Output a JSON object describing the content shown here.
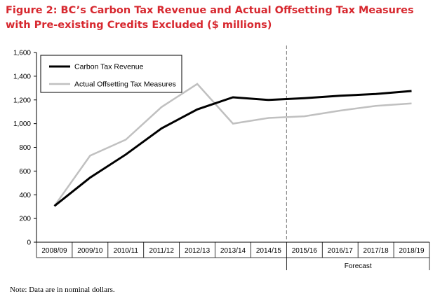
{
  "title": {
    "line1": "Figure 2: BC’s Carbon Tax Revenue and Actual Offsetting Tax Measures",
    "line2": "with Pre-existing Credits Excluded ($ millions)"
  },
  "chart_data": {
    "type": "line",
    "categories": [
      "2008/09",
      "2009/10",
      "2010/11",
      "2011/12",
      "2012/13",
      "2013/14",
      "2014/15",
      "2015/16",
      "2016/17",
      "2017/18",
      "2018/19"
    ],
    "series": [
      {
        "name": "Carbon Tax Revenue",
        "color": "#000000",
        "values": [
          305,
          545,
          740,
          960,
          1120,
          1222,
          1200,
          1215,
          1235,
          1250,
          1275
        ]
      },
      {
        "name": "Actual Offsetting Tax Measures",
        "color": "#c0c0c0",
        "values": [
          305,
          730,
          865,
          1140,
          1335,
          1000,
          1048,
          1062,
          1110,
          1150,
          1170
        ]
      }
    ],
    "ylim": [
      0,
      1600
    ],
    "yticks": [
      0,
      200,
      400,
      600,
      800,
      1000,
      1200,
      1400,
      1600
    ],
    "ytick_labels": [
      "0",
      "200",
      "400",
      "600",
      "800",
      "1,000",
      "1,200",
      "1,400",
      "1,600"
    ],
    "forecast_label": "Forecast",
    "forecast_start_index": 7,
    "legend_position": "top-left",
    "grid": false
  },
  "note": "Note: Data are in nominal dollars."
}
